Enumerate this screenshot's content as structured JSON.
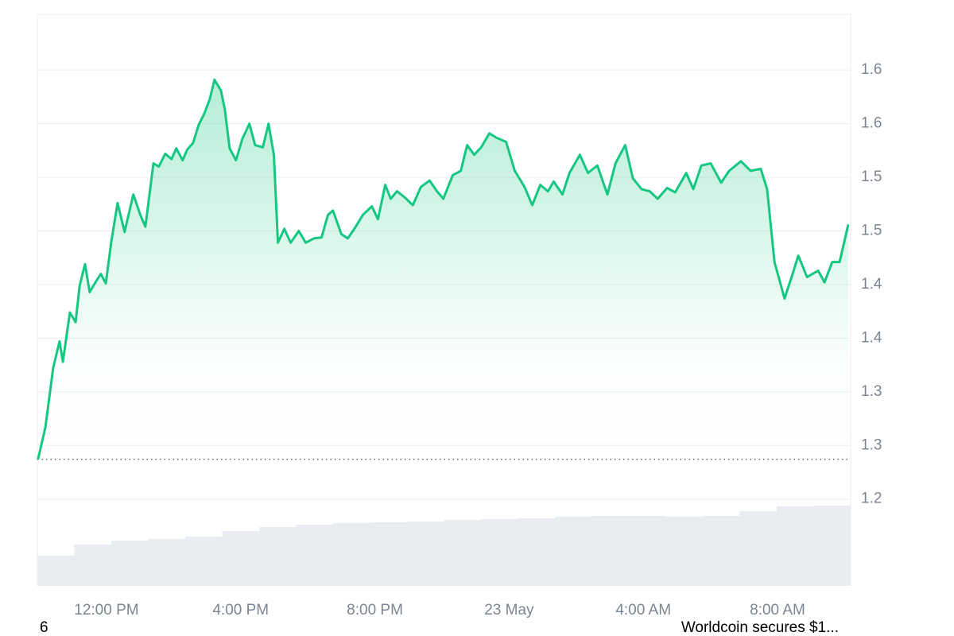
{
  "chart_data": {
    "type": "area",
    "x": [
      9.96,
      10.18,
      10.41,
      10.6,
      10.7,
      10.91,
      11.08,
      11.2,
      11.36,
      11.5,
      11.67,
      11.83,
      11.98,
      12.14,
      12.33,
      12.54,
      12.8,
      13.02,
      13.16,
      13.4,
      13.56,
      13.75,
      13.94,
      14.08,
      14.27,
      14.41,
      14.58,
      14.75,
      14.91,
      15.08,
      15.22,
      15.41,
      15.53,
      15.67,
      15.86,
      16.05,
      16.26,
      16.43,
      16.66,
      16.83,
      16.99,
      17.11,
      17.3,
      17.49,
      17.73,
      17.94,
      18.18,
      18.41,
      18.6,
      18.75,
      19.0,
      19.19,
      19.41,
      19.64,
      19.91,
      20.09,
      20.31,
      20.47,
      20.66,
      20.9,
      21.13,
      21.37,
      21.63,
      21.85,
      22.04,
      22.32,
      22.56,
      22.75,
      22.96,
      23.17,
      23.41,
      23.62,
      23.91,
      24.17,
      24.46,
      24.69,
      24.93,
      25.16,
      25.33,
      25.59,
      25.8,
      26.11,
      26.35,
      26.63,
      26.93,
      27.17,
      27.46,
      27.69,
      27.95,
      28.19,
      28.43,
      28.71,
      28.95,
      29.28,
      29.49,
      29.73,
      30.01,
      30.32,
      30.56,
      30.91,
      31.2,
      31.5,
      31.69,
      31.91,
      32.21,
      32.45,
      32.62,
      32.88,
      33.21,
      33.4,
      33.63,
      33.85,
      34.11
    ],
    "series": [
      {
        "name": "Price",
        "color": "#16c784",
        "values": [
          1.237,
          1.267,
          1.322,
          1.347,
          1.328,
          1.374,
          1.365,
          1.399,
          1.419,
          1.393,
          1.402,
          1.41,
          1.401,
          1.439,
          1.476,
          1.449,
          1.484,
          1.464,
          1.454,
          1.513,
          1.51,
          1.522,
          1.517,
          1.527,
          1.516,
          1.526,
          1.532,
          1.549,
          1.559,
          1.573,
          1.591,
          1.581,
          1.563,
          1.527,
          1.516,
          1.536,
          1.55,
          1.53,
          1.528,
          1.55,
          1.521,
          1.439,
          1.452,
          1.439,
          1.45,
          1.439,
          1.443,
          1.444,
          1.465,
          1.469,
          1.447,
          1.443,
          1.453,
          1.465,
          1.473,
          1.461,
          1.493,
          1.48,
          1.487,
          1.481,
          1.474,
          1.491,
          1.497,
          1.487,
          1.48,
          1.502,
          1.506,
          1.53,
          1.521,
          1.528,
          1.541,
          1.537,
          1.533,
          1.506,
          1.491,
          1.474,
          1.493,
          1.487,
          1.496,
          1.484,
          1.504,
          1.521,
          1.504,
          1.511,
          1.484,
          1.513,
          1.53,
          1.499,
          1.489,
          1.487,
          1.48,
          1.49,
          1.486,
          1.504,
          1.489,
          1.511,
          1.513,
          1.495,
          1.506,
          1.515,
          1.506,
          1.508,
          1.489,
          1.421,
          1.387,
          1.41,
          1.427,
          1.407,
          1.413,
          1.402,
          1.421,
          1.421,
          1.456
        ]
      }
    ],
    "baseline": 1.237,
    "volume": {
      "color": "#e9ecf0",
      "values": [
        38,
        52,
        57,
        59,
        62,
        69,
        74,
        77,
        79,
        80,
        81,
        83,
        84,
        85,
        87,
        88,
        88,
        87,
        88,
        94,
        100,
        101
      ],
      "ylim": [
        0,
        110
      ]
    },
    "xlim": [
      9.94,
      34.18
    ],
    "xticks": [
      {
        "value": 12,
        "label": "12:00 PM"
      },
      {
        "value": 16,
        "label": "4:00 PM"
      },
      {
        "value": 20,
        "label": "8:00 PM"
      },
      {
        "value": 24,
        "label": "23 May"
      },
      {
        "value": 28,
        "label": "4:00 AM"
      },
      {
        "value": 32,
        "label": "8:00 AM"
      }
    ],
    "ylim": [
      1.119,
      1.652
    ],
    "yticks": [
      {
        "value": 1.2,
        "label": "1.2"
      },
      {
        "value": 1.25,
        "label": "1.3"
      },
      {
        "value": 1.3,
        "label": "1.3"
      },
      {
        "value": 1.35,
        "label": "1.4"
      },
      {
        "value": 1.4,
        "label": "1.4"
      },
      {
        "value": 1.45,
        "label": "1.5"
      },
      {
        "value": 1.5,
        "label": "1.5"
      },
      {
        "value": 1.55,
        "label": "1.6"
      },
      {
        "value": 1.6,
        "label": "1.6"
      }
    ],
    "grid": true
  },
  "footer": {
    "left": "6",
    "right": "Worldcoin secures $1..."
  }
}
